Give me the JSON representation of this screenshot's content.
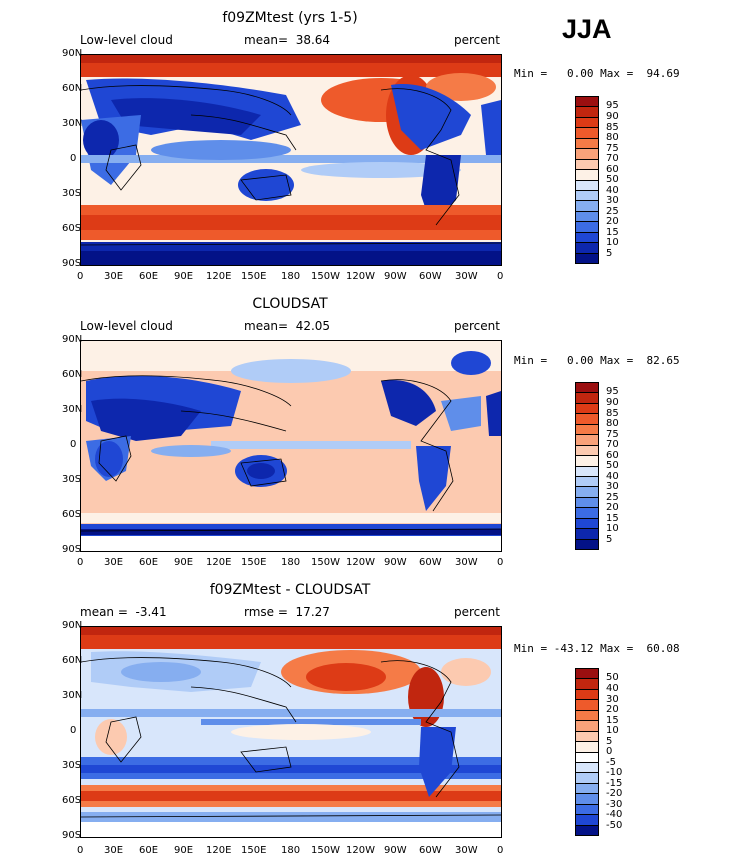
{
  "season": "JJA",
  "lat_labels": [
    "90N",
    "60N",
    "30N",
    "0",
    "30S",
    "60S",
    "90S"
  ],
  "lon_labels": [
    "0",
    "30E",
    "60E",
    "90E",
    "120E",
    "150E",
    "180",
    "150W",
    "120W",
    "90W",
    "60W",
    "30W",
    "0"
  ],
  "colorbar_levels": [
    "95",
    "90",
    "85",
    "80",
    "75",
    "70",
    "60",
    "50",
    "40",
    "30",
    "25",
    "20",
    "15",
    "10",
    "5"
  ],
  "colorbar_colors": [
    "#9b0f10",
    "#c1260f",
    "#dd3b16",
    "#ee5a2b",
    "#f57b47",
    "#f9a27a",
    "#fccab0",
    "#fdf1e6",
    "#d8e6fb",
    "#b0ccf7",
    "#86aef0",
    "#5f8eea",
    "#3c6ce4",
    "#1f47d4",
    "#0d27ad",
    "#031287"
  ],
  "diff_levels": [
    "50",
    "40",
    "30",
    "20",
    "15",
    "10",
    "5",
    "0",
    "-5",
    "-10",
    "-15",
    "-20",
    "-30",
    "-40",
    "-50"
  ],
  "diff_colors": [
    "#9b0f10",
    "#c1260f",
    "#dd3b16",
    "#ee5a2b",
    "#f57b47",
    "#f9a27a",
    "#fccab0",
    "#fdf1e6",
    "#ffffff",
    "#d8e6fb",
    "#b0ccf7",
    "#86aef0",
    "#5f8eea",
    "#3c6ce4",
    "#1f47d4",
    "#031287"
  ],
  "panels": [
    {
      "title": "f09ZMtest (yrs 1-5)",
      "left_label": "Low-level cloud",
      "center_label": "mean=  38.64",
      "right_label": "percent",
      "minmax": "Min =   0.00 Max =  94.69"
    },
    {
      "title": "CLOUDSAT",
      "left_label": "Low-level cloud",
      "center_label": "mean=  42.05",
      "right_label": "percent",
      "minmax": "Min =   0.00 Max =  82.65"
    },
    {
      "title": "f09ZMtest - CLOUDSAT",
      "left_label": "mean =  -3.41",
      "center_label": "rmse =  17.27",
      "right_label": "percent",
      "minmax": "Min = -43.12 Max =  60.08"
    }
  ]
}
